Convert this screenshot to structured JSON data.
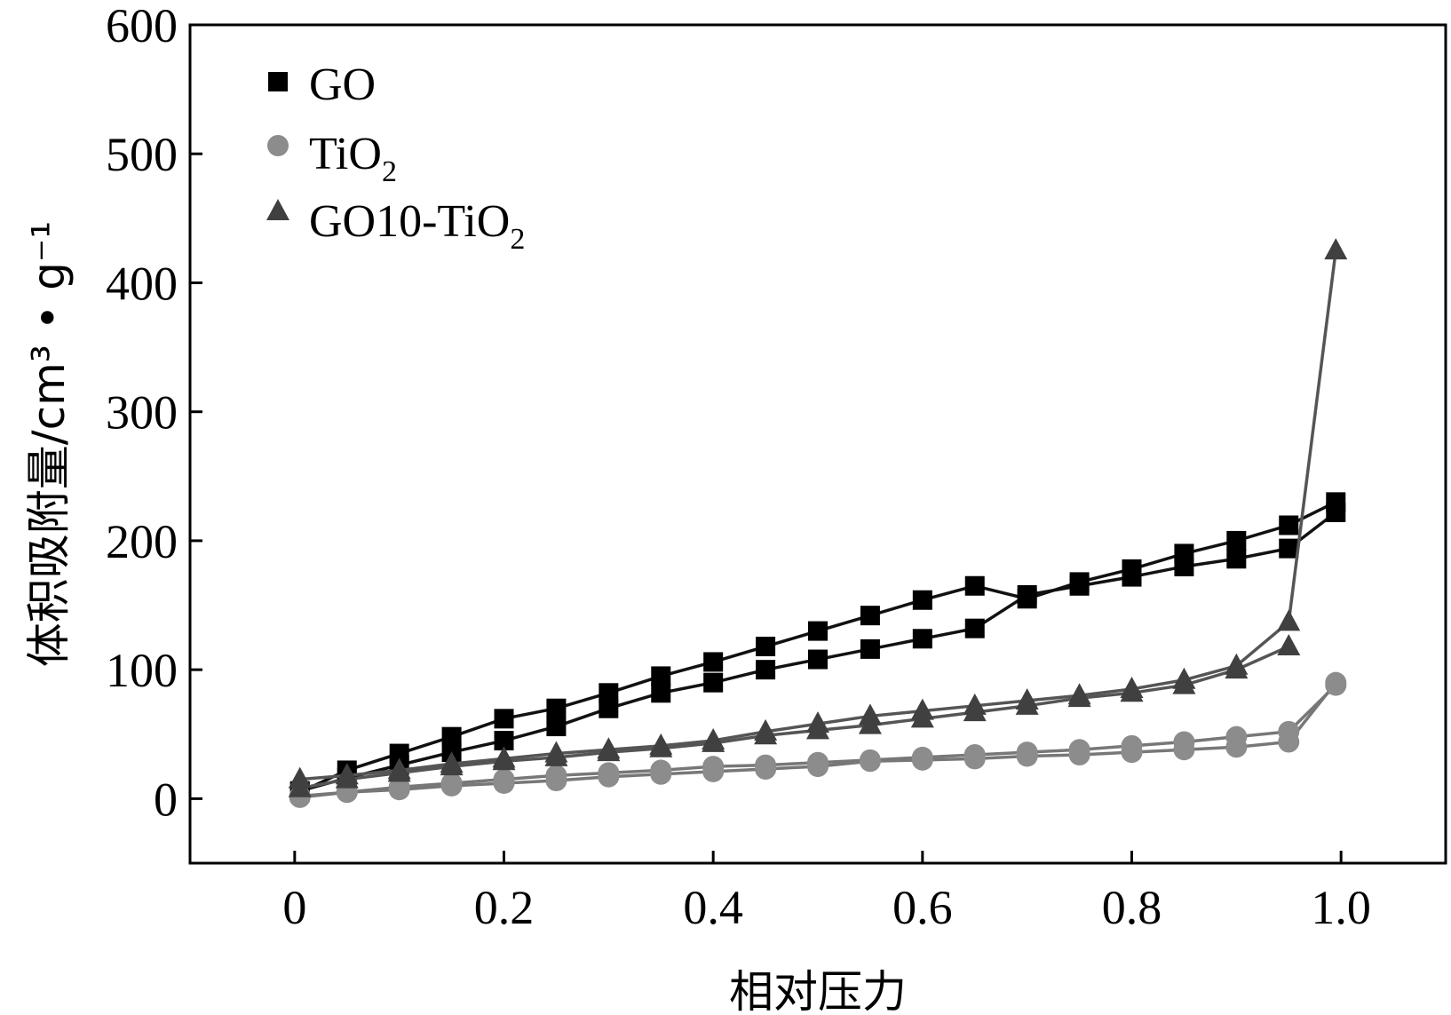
{
  "chart_data": {
    "type": "line",
    "title": "",
    "xlabel": "相对压力",
    "ylabel": "体积吸附量/cm³ • g⁻¹",
    "xlim": [
      -0.1,
      1.1
    ],
    "ylim": [
      -50,
      600
    ],
    "xticks": [
      {
        "value": 0,
        "label": "0"
      },
      {
        "value": 0.2,
        "label": "0.2"
      },
      {
        "value": 0.4,
        "label": "0.4"
      },
      {
        "value": 0.6,
        "label": "0.6"
      },
      {
        "value": 0.8,
        "label": "0.8"
      },
      {
        "value": 1.0,
        "label": "1.0"
      }
    ],
    "yticks": [
      {
        "value": 0,
        "label": "0"
      },
      {
        "value": 100,
        "label": "100"
      },
      {
        "value": 200,
        "label": "200"
      },
      {
        "value": 300,
        "label": "300"
      },
      {
        "value": 400,
        "label": "400"
      },
      {
        "value": 500,
        "label": "500"
      },
      {
        "value": 600,
        "label": "600"
      }
    ],
    "legend_position": "top-left",
    "series": [
      {
        "name": "GO",
        "legend": {
          "main": "GO",
          "sub": ""
        },
        "marker": "square",
        "color": "#000000",
        "line_color": "#111111",
        "branches": [
          {
            "x": [
              0.005,
              0.05,
              0.1,
              0.15,
              0.2,
              0.25,
              0.3,
              0.35,
              0.4,
              0.45,
              0.5,
              0.55,
              0.6,
              0.65,
              0.7,
              0.75,
              0.8,
              0.85,
              0.9,
              0.95,
              0.995
            ],
            "y": [
              5,
              22,
              35,
              48,
              62,
              70,
              82,
              95,
              106,
              118,
              130,
              142,
              154,
              165,
              155,
              168,
              178,
              190,
              200,
              212,
              230
            ]
          },
          {
            "x": [
              0.995,
              0.95,
              0.9,
              0.85,
              0.8,
              0.75,
              0.7,
              0.65,
              0.6,
              0.55,
              0.5,
              0.45,
              0.4,
              0.35,
              0.3,
              0.25,
              0.2,
              0.15,
              0.1,
              0.05,
              0.005
            ],
            "y": [
              222,
              194,
              186,
              180,
              172,
              165,
              158,
              132,
              124,
              116,
              108,
              100,
              90,
              82,
              70,
              56,
              45,
              36,
              26,
              16,
              6
            ]
          }
        ]
      },
      {
        "name": "TiO2",
        "legend": {
          "main": "TiO",
          "sub": "2"
        },
        "marker": "circle",
        "color": "#8c8c8c",
        "line_color": "#777777",
        "branches": [
          {
            "x": [
              0.005,
              0.05,
              0.1,
              0.15,
              0.2,
              0.25,
              0.3,
              0.35,
              0.4,
              0.45,
              0.5,
              0.55,
              0.6,
              0.65,
              0.7,
              0.75,
              0.8,
              0.85,
              0.9,
              0.95,
              0.995
            ],
            "y": [
              1,
              5,
              9,
              12,
              15,
              18,
              20,
              22,
              25,
              26,
              28,
              30,
              32,
              34,
              36,
              38,
              41,
              44,
              48,
              52,
              88
            ]
          },
          {
            "x": [
              0.995,
              0.95,
              0.9,
              0.85,
              0.8,
              0.75,
              0.7,
              0.65,
              0.6,
              0.55,
              0.5,
              0.45,
              0.4,
              0.35,
              0.3,
              0.25,
              0.2,
              0.15,
              0.1,
              0.05,
              0.005
            ],
            "y": [
              90,
              44,
              40,
              38,
              36,
              34,
              33,
              31,
              30,
              29,
              25,
              23,
              21,
              19,
              17,
              14,
              12,
              10,
              7,
              5,
              2
            ]
          }
        ]
      },
      {
        "name": "GO10-TiO2",
        "legend": {
          "main": "GO10-TiO",
          "sub": "2"
        },
        "marker": "triangle",
        "color": "#404040",
        "line_color": "#555555",
        "branches": [
          {
            "x": [
              0.005,
              0.05,
              0.1,
              0.15,
              0.2,
              0.25,
              0.3,
              0.35,
              0.4,
              0.45,
              0.5,
              0.55,
              0.6,
              0.65,
              0.7,
              0.75,
              0.8,
              0.85,
              0.9,
              0.95,
              0.995
            ],
            "y": [
              15,
              18,
              22,
              27,
              31,
              35,
              38,
              41,
              45,
              52,
              58,
              64,
              68,
              72,
              76,
              80,
              85,
              92,
              103,
              137,
              425
            ]
          },
          {
            "x": [
              0.95,
              0.9,
              0.85,
              0.8,
              0.75,
              0.7,
              0.65,
              0.6,
              0.55,
              0.5,
              0.45,
              0.4,
              0.35,
              0.3,
              0.25,
              0.2,
              0.15,
              0.1,
              0.05,
              0.005
            ],
            "y": [
              118,
              100,
              88,
              82,
              78,
              72,
              67,
              62,
              57,
              53,
              49,
              43,
              39,
              36,
              32,
              29,
              25,
              20,
              15,
              8
            ]
          }
        ]
      }
    ]
  }
}
